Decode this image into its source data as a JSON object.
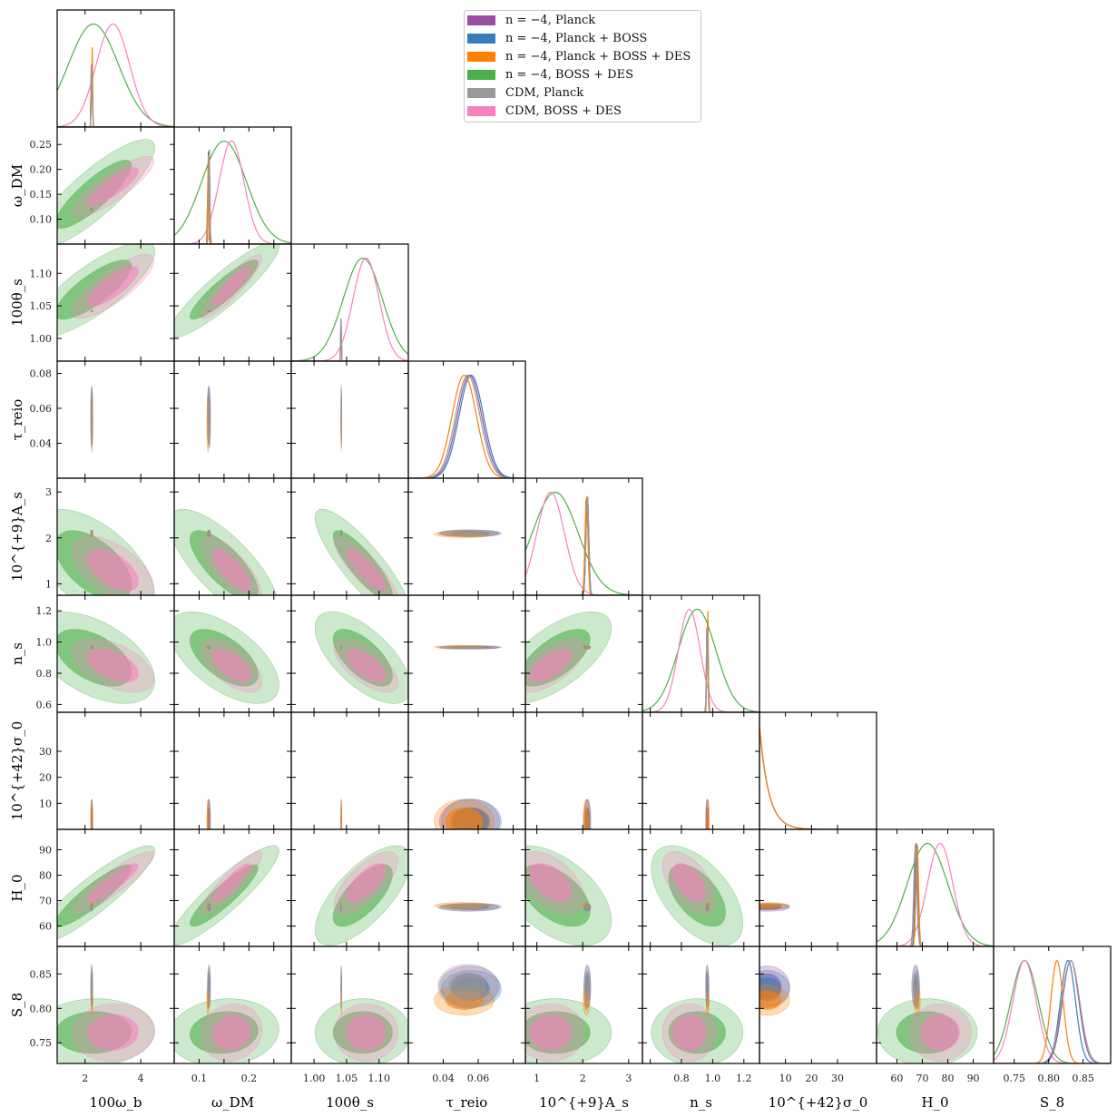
{
  "chart_data": {
    "type": "corner",
    "parameters": [
      {
        "key": "wb",
        "label": "100ω_b",
        "range": [
          1.0,
          5.2
        ],
        "ticks": [
          2,
          4
        ],
        "tick_labels": [
          "2",
          "4"
        ]
      },
      {
        "key": "wdm",
        "label": "ω_DM",
        "range": [
          0.05,
          0.285
        ],
        "ticks": [
          0.1,
          0.15,
          0.2,
          0.25
        ],
        "tick_labels": [
          "0.1",
          "0.2"
        ],
        "tick_labels_y": [
          "0.10",
          "0.15",
          "0.20",
          "0.25"
        ]
      },
      {
        "key": "th",
        "label": "100θ_s",
        "range": [
          0.965,
          1.145
        ],
        "ticks": [
          1.0,
          1.05,
          1.1
        ],
        "tick_labels": [
          "1.00",
          "1.05",
          "1.10"
        ]
      },
      {
        "key": "tau",
        "label": "τ_reio",
        "range": [
          0.02,
          0.087
        ],
        "ticks": [
          0.04,
          0.06,
          0.08
        ],
        "tick_labels": [
          "0.04",
          "0.06"
        ],
        "tick_labels_y": [
          "0.04",
          "0.06",
          "0.08"
        ]
      },
      {
        "key": "As",
        "label": "10^{+9}A_s",
        "range": [
          0.75,
          3.3
        ],
        "ticks": [
          1,
          2,
          3
        ],
        "tick_labels": [
          "1",
          "2",
          "3"
        ]
      },
      {
        "key": "ns",
        "label": "n_s",
        "range": [
          0.55,
          1.3
        ],
        "ticks": [
          0.6,
          0.8,
          1.0,
          1.2
        ],
        "tick_labels": [
          "0.8",
          "1.0",
          "1.2"
        ],
        "tick_labels_y": [
          "0.6",
          "0.8",
          "1.0",
          "1.2"
        ]
      },
      {
        "key": "sig",
        "label": "10^{+42}σ_0",
        "range": [
          0,
          45
        ],
        "ticks": [
          10,
          20,
          30
        ],
        "tick_labels": [
          "10",
          "20",
          "30"
        ]
      },
      {
        "key": "H0",
        "label": "H_0",
        "range": [
          52,
          98
        ],
        "ticks": [
          60,
          70,
          80,
          90
        ],
        "tick_labels": [
          "60",
          "70",
          "80",
          "90"
        ]
      },
      {
        "key": "S8",
        "label": "S_8",
        "range": [
          0.72,
          0.89
        ],
        "ticks": [
          0.75,
          0.8,
          0.85
        ],
        "tick_labels": [
          "0.75",
          "0.80",
          "0.85"
        ]
      }
    ],
    "legend": [
      {
        "label": "n = −4, Planck",
        "color": "#984ea3"
      },
      {
        "label": "n = −4, Planck + BOSS",
        "color": "#377eb8"
      },
      {
        "label": "n = −4, Planck + BOSS + DES",
        "color": "#ff7f00"
      },
      {
        "label": "n = −4, BOSS + DES",
        "color": "#4daf4a"
      },
      {
        "label": "CDM, Planck",
        "color": "#999999"
      },
      {
        "label": "CDM, BOSS + DES",
        "color": "#f781bf"
      }
    ],
    "legend_position": "top-right",
    "series": [
      {
        "name": "n = −4, Planck",
        "color": "#984ea3",
        "mean": {
          "wb": 2.24,
          "wdm": 0.12,
          "th": 1.0419,
          "tau": 0.055,
          "As": 2.1,
          "ns": 0.965,
          "sig": 3.0,
          "H0": 67.3,
          "S8": 0.832
        },
        "sigma": {
          "wb": 0.015,
          "wdm": 0.0012,
          "th": 0.0003,
          "tau": 0.007,
          "As": 0.03,
          "ns": 0.004,
          "sig": 2.5,
          "H0": 0.6,
          "S8": 0.012
        }
      },
      {
        "name": "n = −4, Planck + BOSS",
        "color": "#377eb8",
        "mean": {
          "wb": 2.24,
          "wdm": 0.119,
          "th": 1.0419,
          "tau": 0.056,
          "As": 2.1,
          "ns": 0.967,
          "sig": 3.0,
          "H0": 67.7,
          "S8": 0.828
        },
        "sigma": {
          "wb": 0.014,
          "wdm": 0.001,
          "th": 0.0003,
          "tau": 0.007,
          "As": 0.03,
          "ns": 0.004,
          "sig": 2.5,
          "H0": 0.5,
          "S8": 0.011
        }
      },
      {
        "name": "n = −4, Planck + BOSS + DES",
        "color": "#ff7f00",
        "mean": {
          "wb": 2.25,
          "wdm": 0.118,
          "th": 1.042,
          "tau": 0.052,
          "As": 2.08,
          "ns": 0.968,
          "sig": 3.0,
          "H0": 68.0,
          "S8": 0.812
        },
        "sigma": {
          "wb": 0.014,
          "wdm": 0.001,
          "th": 0.0003,
          "tau": 0.007,
          "As": 0.03,
          "ns": 0.004,
          "sig": 2.5,
          "H0": 0.5,
          "S8": 0.009
        }
      },
      {
        "name": "n = −4, BOSS + DES",
        "color": "#4daf4a",
        "mean": {
          "wb": 2.3,
          "wdm": 0.15,
          "th": 1.075,
          "As": 1.4,
          "ns": 0.9,
          "H0": 72.0,
          "S8": 0.765
        },
        "sigma": {
          "wb": 0.9,
          "wdm": 0.045,
          "th": 0.03,
          "As": 0.5,
          "ns": 0.12,
          "H0": 8.0,
          "S8": 0.02
        }
      },
      {
        "name": "CDM, Planck",
        "color": "#999999",
        "mean": {
          "wb": 2.24,
          "wdm": 0.12,
          "th": 1.0419,
          "tau": 0.054,
          "As": 2.1,
          "ns": 0.965,
          "H0": 67.4,
          "S8": 0.832
        },
        "sigma": {
          "wb": 0.015,
          "wdm": 0.0012,
          "th": 0.0003,
          "tau": 0.007,
          "As": 0.03,
          "ns": 0.004,
          "H0": 0.6,
          "S8": 0.013
        }
      },
      {
        "name": "CDM, BOSS + DES",
        "color": "#f781bf",
        "mean": {
          "wb": 3.0,
          "wdm": 0.165,
          "th": 1.08,
          "As": 1.3,
          "ns": 0.85,
          "H0": 77.0,
          "S8": 0.765
        },
        "sigma": {
          "wb": 0.6,
          "wdm": 0.025,
          "th": 0.02,
          "As": 0.3,
          "ns": 0.07,
          "H0": 5.0,
          "S8": 0.017
        }
      }
    ],
    "grid": false
  }
}
